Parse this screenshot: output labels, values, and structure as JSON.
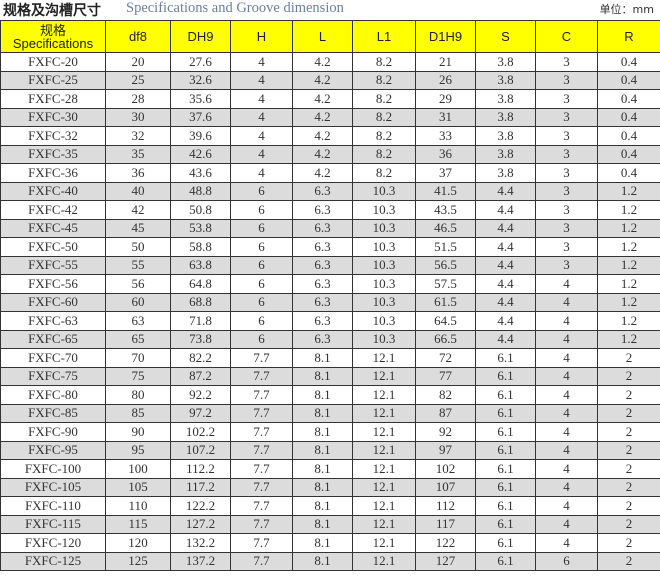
{
  "title": {
    "cn": "规格及沟槽尺寸",
    "en": "Specifications and Groove dimension",
    "unit": "单位：mm"
  },
  "header": {
    "spec_cn": "规格",
    "spec_en": "Specifications",
    "columns": [
      "df8",
      "DH9",
      "H",
      "L",
      "L1",
      "D1H9",
      "S",
      "C",
      "R"
    ]
  },
  "colors": {
    "header_bg": "#ffff00",
    "alt_row": "#dcdcdc"
  },
  "rows": [
    [
      "FXFC-20",
      "20",
      "27.6",
      "4",
      "4.2",
      "8.2",
      "21",
      "3.8",
      "3",
      "0.4"
    ],
    [
      "FXFC-25",
      "25",
      "32.6",
      "4",
      "4.2",
      "8.2",
      "26",
      "3.8",
      "3",
      "0.4"
    ],
    [
      "FXFC-28",
      "28",
      "35.6",
      "4",
      "4.2",
      "8.2",
      "29",
      "3.8",
      "3",
      "0.4"
    ],
    [
      "FXFC-30",
      "30",
      "37.6",
      "4",
      "4.2",
      "8.2",
      "31",
      "3.8",
      "3",
      "0.4"
    ],
    [
      "FXFC-32",
      "32",
      "39.6",
      "4",
      "4.2",
      "8.2",
      "33",
      "3.8",
      "3",
      "0.4"
    ],
    [
      "FXFC-35",
      "35",
      "42.6",
      "4",
      "4.2",
      "8.2",
      "36",
      "3.8",
      "3",
      "0.4"
    ],
    [
      "FXFC-36",
      "36",
      "43.6",
      "4",
      "4.2",
      "8.2",
      "37",
      "3.8",
      "3",
      "0.4"
    ],
    [
      "FXFC-40",
      "40",
      "48.8",
      "6",
      "6.3",
      "10.3",
      "41.5",
      "4.4",
      "3",
      "1.2"
    ],
    [
      "FXFC-42",
      "42",
      "50.8",
      "6",
      "6.3",
      "10.3",
      "43.5",
      "4.4",
      "3",
      "1.2"
    ],
    [
      "FXFC-45",
      "45",
      "53.8",
      "6",
      "6.3",
      "10.3",
      "46.5",
      "4.4",
      "3",
      "1.2"
    ],
    [
      "FXFC-50",
      "50",
      "58.8",
      "6",
      "6.3",
      "10.3",
      "51.5",
      "4.4",
      "3",
      "1.2"
    ],
    [
      "FXFC-55",
      "55",
      "63.8",
      "6",
      "6.3",
      "10.3",
      "56.5",
      "4.4",
      "3",
      "1.2"
    ],
    [
      "FXFC-56",
      "56",
      "64.8",
      "6",
      "6.3",
      "10.3",
      "57.5",
      "4.4",
      "4",
      "1.2"
    ],
    [
      "FXFC-60",
      "60",
      "68.8",
      "6",
      "6.3",
      "10.3",
      "61.5",
      "4.4",
      "4",
      "1.2"
    ],
    [
      "FXFC-63",
      "63",
      "71.8",
      "6",
      "6.3",
      "10.3",
      "64.5",
      "4.4",
      "4",
      "1.2"
    ],
    [
      "FXFC-65",
      "65",
      "73.8",
      "6",
      "6.3",
      "10.3",
      "66.5",
      "4.4",
      "4",
      "1.2"
    ],
    [
      "FXFC-70",
      "70",
      "82.2",
      "7.7",
      "8.1",
      "12.1",
      "72",
      "6.1",
      "4",
      "2"
    ],
    [
      "FXFC-75",
      "75",
      "87.2",
      "7.7",
      "8.1",
      "12.1",
      "77",
      "6.1",
      "4",
      "2"
    ],
    [
      "FXFC-80",
      "80",
      "92.2",
      "7.7",
      "8.1",
      "12.1",
      "82",
      "6.1",
      "4",
      "2"
    ],
    [
      "FXFC-85",
      "85",
      "97.2",
      "7.7",
      "8.1",
      "12.1",
      "87",
      "6.1",
      "4",
      "2"
    ],
    [
      "FXFC-90",
      "90",
      "102.2",
      "7.7",
      "8.1",
      "12.1",
      "92",
      "6.1",
      "4",
      "2"
    ],
    [
      "FXFC-95",
      "95",
      "107.2",
      "7.7",
      "8.1",
      "12.1",
      "97",
      "6.1",
      "4",
      "2"
    ],
    [
      "FXFC-100",
      "100",
      "112.2",
      "7.7",
      "8.1",
      "12.1",
      "102",
      "6.1",
      "4",
      "2"
    ],
    [
      "FXFC-105",
      "105",
      "117.2",
      "7.7",
      "8.1",
      "12.1",
      "107",
      "6.1",
      "4",
      "2"
    ],
    [
      "FXFC-110",
      "110",
      "122.2",
      "7.7",
      "8.1",
      "12.1",
      "112",
      "6.1",
      "4",
      "2"
    ],
    [
      "FXFC-115",
      "115",
      "127.2",
      "7.7",
      "8.1",
      "12.1",
      "117",
      "6.1",
      "4",
      "2"
    ],
    [
      "FXFC-120",
      "120",
      "132.2",
      "7.7",
      "8.1",
      "12.1",
      "122",
      "6.1",
      "4",
      "2"
    ],
    [
      "FXFC-125",
      "125",
      "137.2",
      "7.7",
      "8.1",
      "12.1",
      "127",
      "6.1",
      "6",
      "2"
    ]
  ]
}
